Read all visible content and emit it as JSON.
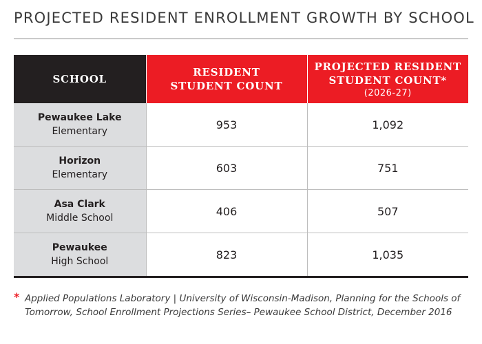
{
  "title": "PROJECTED RESIDENT ENROLLMENT GROWTH BY SCHOOL",
  "headers": {
    "school": "SCHOOL",
    "current_line1": "RESIDENT",
    "current_line2": "STUDENT COUNT",
    "projected_line1": "PROJECTED RESIDENT",
    "projected_line2": "STUDENT COUNT*",
    "projected_sub": "(2026-27)"
  },
  "rows": [
    {
      "name_top": "Pewaukee Lake",
      "name_bottom": "Elementary",
      "current": "953",
      "projected": "1,092"
    },
    {
      "name_top": "Horizon",
      "name_bottom": "Elementary",
      "current": "603",
      "projected": "751"
    },
    {
      "name_top": "Asa Clark",
      "name_bottom": "Middle School",
      "current": "406",
      "projected": "507"
    },
    {
      "name_top": "Pewaukee",
      "name_bottom": "High School",
      "current": "823",
      "projected": "1,035"
    }
  ],
  "footnote": {
    "marker": "*",
    "text": "Applied Populations Laboratory | University of Wisconsin-Madison, Planning for the Schools of Tomorrow, School Enrollment Projections Series– Pewaukee School District, December 2016"
  },
  "colors": {
    "accent_red": "#ec1c24",
    "header_dark": "#231f20",
    "school_column_gray": "#dcdddf"
  },
  "chart_data": {
    "type": "table",
    "title": "PROJECTED RESIDENT ENROLLMENT GROWTH BY SCHOOL",
    "columns": [
      "SCHOOL",
      "RESIDENT STUDENT COUNT",
      "PROJECTED RESIDENT STUDENT COUNT* (2026-27)"
    ],
    "categories": [
      "Pewaukee Lake Elementary",
      "Horizon Elementary",
      "Asa Clark Middle School",
      "Pewaukee High School"
    ],
    "series": [
      {
        "name": "RESIDENT STUDENT COUNT",
        "values": [
          953,
          603,
          406,
          823
        ]
      },
      {
        "name": "PROJECTED RESIDENT STUDENT COUNT* (2026-27)",
        "values": [
          1092,
          751,
          507,
          1035
        ]
      }
    ]
  }
}
